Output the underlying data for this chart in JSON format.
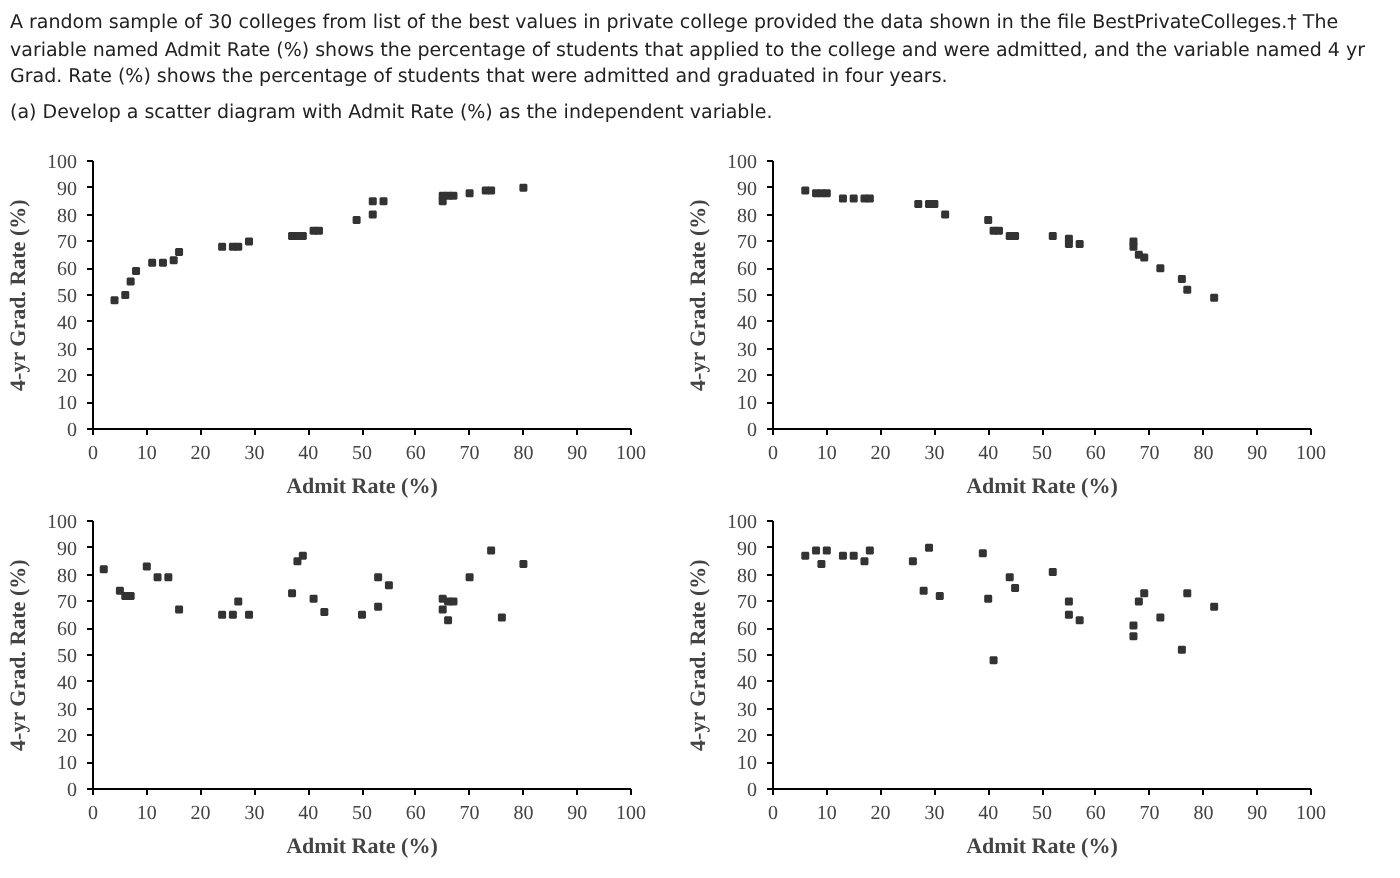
{
  "chart_data": [
    {
      "type": "scatter",
      "annotations": [
        "A random sample of 30 colleges from list of the best values in private college provided the data shown in the file BestPrivateColleges.† The variable named Admit Rate (%) shows the percentage of students that applied to the college and were admitted, and the variable named 4 yr Grad. Rate (%) shows the percentage of students that were admitted and graduated in four years.",
        "(a) Develop a scatter diagram with Admit Rate (%) as the independent variable."
      ],
      "xlabel": "Admit Rate (%)",
      "ylabel": "4-yr Grad. Rate (%)",
      "xlim": [
        0,
        100
      ],
      "ylim": [
        0,
        100
      ],
      "xticks": [
        0,
        10,
        20,
        30,
        40,
        50,
        60,
        70,
        80,
        90,
        100
      ],
      "yticks": [
        0,
        10,
        20,
        30,
        40,
        50,
        60,
        70,
        80,
        90,
        100
      ],
      "grid": false,
      "marker": "square",
      "series": [
        {
          "color": "#333333",
          "x": [
            4,
            6,
            7,
            8,
            11,
            13,
            15,
            16,
            24,
            26,
            27,
            29,
            37,
            38,
            39,
            41,
            42,
            49,
            52,
            52,
            54,
            65,
            65,
            66,
            67,
            70,
            73,
            74,
            80
          ],
          "values": [
            48,
            50,
            55,
            59,
            62,
            62,
            63,
            66,
            68,
            68,
            68,
            70,
            72,
            72,
            72,
            74,
            74,
            78,
            80,
            85,
            85,
            85,
            87,
            87,
            87,
            88,
            89,
            89,
            90
          ]
        }
      ]
    },
    {
      "type": "scatter",
      "xlabel": "Admit Rate (%)",
      "ylabel": "4-yr Grad. Rate (%)",
      "xlim": [
        0,
        100
      ],
      "ylim": [
        0,
        100
      ],
      "xticks": [
        0,
        10,
        20,
        30,
        40,
        50,
        60,
        70,
        80,
        90,
        100
      ],
      "yticks": [
        0,
        10,
        20,
        30,
        40,
        50,
        60,
        70,
        80,
        90,
        100
      ],
      "grid": false,
      "marker": "square",
      "series": [
        {
          "color": "#333333",
          "x": [
            6,
            8,
            9,
            10,
            13,
            15,
            17,
            18,
            27,
            29,
            30,
            32,
            40,
            41,
            42,
            44,
            45,
            52,
            55,
            55,
            57,
            67,
            67,
            68,
            69,
            72,
            76,
            77,
            82
          ],
          "values": [
            89,
            88,
            88,
            88,
            86,
            86,
            86,
            86,
            84,
            84,
            84,
            80,
            78,
            74,
            74,
            72,
            72,
            72,
            71,
            69,
            69,
            70,
            68,
            65,
            64,
            60,
            56,
            52,
            49
          ]
        }
      ]
    },
    {
      "type": "scatter",
      "xlabel": "Admit Rate (%)",
      "ylabel": "4-yr Grad. Rate (%)",
      "xlim": [
        0,
        100
      ],
      "ylim": [
        0,
        100
      ],
      "xticks": [
        0,
        10,
        20,
        30,
        40,
        50,
        60,
        70,
        80,
        90,
        100
      ],
      "yticks": [
        0,
        10,
        20,
        30,
        40,
        50,
        60,
        70,
        80,
        90,
        100
      ],
      "grid": false,
      "marker": "square",
      "series": [
        {
          "color": "#333333",
          "x": [
            2,
            5,
            6,
            7,
            10,
            12,
            14,
            16,
            24,
            26,
            27,
            29,
            37,
            38,
            39,
            41,
            43,
            50,
            53,
            53,
            55,
            65,
            65,
            66,
            66,
            67,
            70,
            74,
            76,
            80
          ],
          "values": [
            82,
            74,
            72,
            72,
            83,
            79,
            79,
            67,
            65,
            65,
            70,
            65,
            73,
            85,
            87,
            71,
            66,
            65,
            79,
            68,
            76,
            67,
            71,
            70,
            63,
            70,
            79,
            89,
            64,
            84
          ]
        }
      ]
    },
    {
      "type": "scatter",
      "xlabel": "Admit Rate (%)",
      "ylabel": "4-yr Grad. Rate (%)",
      "xlim": [
        0,
        100
      ],
      "ylim": [
        0,
        100
      ],
      "xticks": [
        0,
        10,
        20,
        30,
        40,
        50,
        60,
        70,
        80,
        90,
        100
      ],
      "yticks": [
        0,
        10,
        20,
        30,
        40,
        50,
        60,
        70,
        80,
        90,
        100
      ],
      "grid": false,
      "marker": "square",
      "series": [
        {
          "color": "#333333",
          "x": [
            6,
            8,
            9,
            10,
            13,
            15,
            17,
            18,
            26,
            28,
            29,
            31,
            39,
            40,
            41,
            44,
            45,
            52,
            55,
            55,
            57,
            67,
            67,
            68,
            69,
            72,
            76,
            77,
            82
          ],
          "values": [
            87,
            89,
            84,
            89,
            87,
            87,
            85,
            89,
            85,
            74,
            90,
            72,
            88,
            71,
            48,
            79,
            75,
            81,
            70,
            65,
            63,
            61,
            57,
            70,
            73,
            64,
            52,
            73,
            68
          ]
        }
      ]
    }
  ]
}
